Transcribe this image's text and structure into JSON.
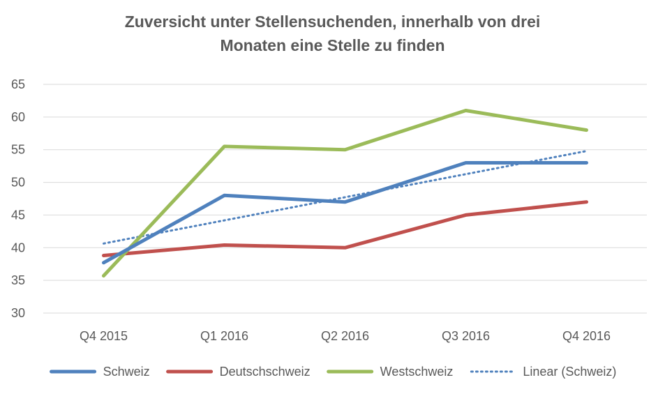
{
  "chart_data": {
    "type": "line",
    "title": [
      "Zuversicht unter Stellensuchenden, innerhalb von drei",
      "Monaten eine Stelle zu finden"
    ],
    "categories": [
      "Q4 2015",
      "Q1 2016",
      "Q2 2016",
      "Q3 2016",
      "Q4 2016"
    ],
    "series": [
      {
        "name": "Schweiz",
        "values": [
          37.7,
          48,
          47,
          53,
          53
        ],
        "color": "#4f81bd",
        "style": "solid"
      },
      {
        "name": "Deutschschweiz",
        "values": [
          38.8,
          40.4,
          40,
          45,
          47
        ],
        "color": "#c0504d",
        "style": "solid"
      },
      {
        "name": "Westschweiz",
        "values": [
          35.7,
          55.5,
          55,
          61,
          58
        ],
        "color": "#9bbb59",
        "style": "solid"
      },
      {
        "name": "Linear (Schweiz)",
        "values": [
          40.64,
          44.18,
          47.72,
          51.26,
          54.8
        ],
        "color": "#4f81bd",
        "style": "dotted",
        "trendline": true
      }
    ],
    "ylim": [
      30,
      65
    ],
    "yticks": [
      30,
      35,
      40,
      45,
      50,
      55,
      60,
      65
    ],
    "grid": true,
    "legend_position": "bottom"
  }
}
